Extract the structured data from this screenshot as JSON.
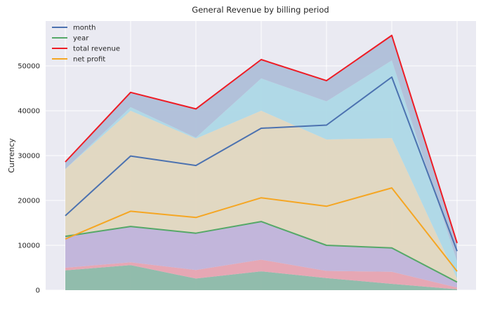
{
  "chart_data": {
    "type": "area",
    "title": "General Revenue by billing period",
    "ylabel": "Currency",
    "xlabel": "",
    "ylim": [
      0,
      60000
    ],
    "yticks": [
      0,
      10000,
      20000,
      30000,
      40000,
      50000
    ],
    "x": [
      1,
      2,
      3,
      4,
      5,
      6,
      7
    ],
    "grid": true,
    "legend_position": "upper-left",
    "series": [
      {
        "name": "month",
        "color": "#4c72b0",
        "values": [
          16600,
          29900,
          27800,
          36100,
          36800,
          47500,
          8700
        ]
      },
      {
        "name": "year",
        "color": "#55a868",
        "values": [
          12000,
          14200,
          12700,
          15300,
          10000,
          9400,
          1800
        ]
      },
      {
        "name": "total revenue",
        "color": "#ee1c25",
        "values": [
          28600,
          44100,
          40400,
          51400,
          46700,
          56800,
          10500
        ]
      },
      {
        "name": "net profit",
        "color": "#f5a623",
        "values": [
          11400,
          17600,
          16200,
          20600,
          18700,
          22800,
          4200
        ]
      }
    ],
    "fill_layers": [
      {
        "color": "#8cb9a8",
        "values": [
          4400,
          5600,
          2600,
          4200,
          2700,
          1400,
          200
        ]
      },
      {
        "color": "#e6a3b0",
        "values": [
          5000,
          6200,
          4500,
          6800,
          4300,
          4100,
          600
        ]
      },
      {
        "color": "#c0b3d9",
        "values": [
          12000,
          14200,
          12700,
          15300,
          10000,
          9400,
          1800
        ]
      },
      {
        "color": "#e0d7bf",
        "values": [
          27000,
          40000,
          33800,
          40000,
          33600,
          33900,
          2600
        ]
      },
      {
        "color": "#add8e6",
        "values": [
          27000,
          40800,
          34000,
          47200,
          42100,
          51200,
          6400
        ]
      },
      {
        "color": "#afbfd8",
        "values": [
          28600,
          44100,
          40400,
          51400,
          46700,
          56800,
          10500
        ]
      }
    ]
  }
}
